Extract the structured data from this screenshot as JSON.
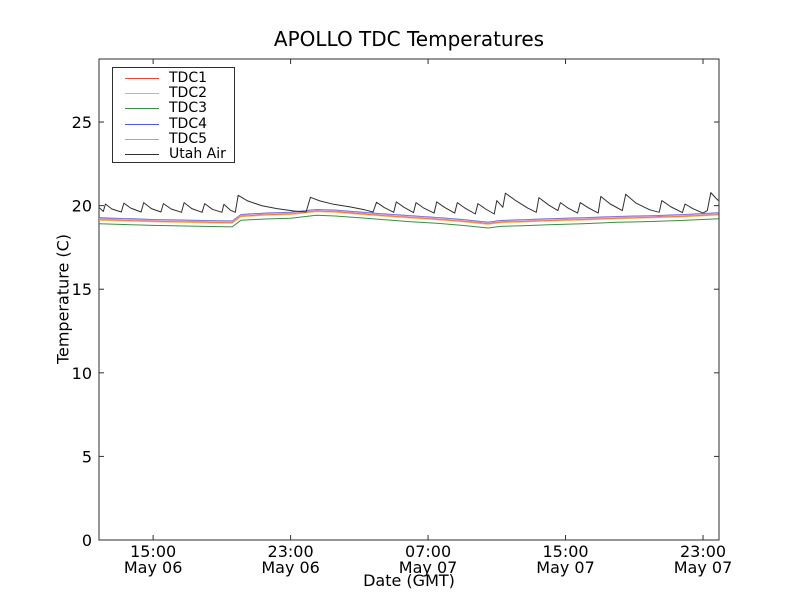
{
  "figure": {
    "background": "#ffffff",
    "frame_color": "#2e2e2e",
    "text_color": "#000000"
  },
  "chart_data": {
    "type": "line",
    "title": "APOLLO TDC Temperatures",
    "xlabel": "Date (GMT)",
    "ylabel": "Temperature (C)",
    "x_encoding": "hours after May 06 12:00 GMT",
    "xlim": [
      -0.15,
      35.93
    ],
    "ylim": [
      0,
      28.77
    ],
    "grid": false,
    "legend_position": "upper left",
    "x_ticks": [
      {
        "t": 3,
        "time": "15:00",
        "date": "May 06"
      },
      {
        "t": 11,
        "time": "23:00",
        "date": "May 06"
      },
      {
        "t": 19,
        "time": "07:00",
        "date": "May 07"
      },
      {
        "t": 27,
        "time": "15:00",
        "date": "May 07"
      },
      {
        "t": 35,
        "time": "23:00",
        "date": "May 07"
      }
    ],
    "y_ticks": [
      {
        "v": 0,
        "label": "0"
      },
      {
        "v": 5,
        "label": "5"
      },
      {
        "v": 10,
        "label": "10"
      },
      {
        "v": 15,
        "label": "15"
      },
      {
        "v": 20,
        "label": "20"
      },
      {
        "v": 25,
        "label": "25"
      }
    ],
    "series": [
      {
        "name": "TDC1",
        "color": "#e8473f",
        "points": [
          [
            -0.15,
            19.15
          ],
          [
            3,
            19.07
          ],
          [
            6,
            19.01
          ],
          [
            7.6,
            18.98
          ],
          [
            8.1,
            19.37
          ],
          [
            9.5,
            19.45
          ],
          [
            11,
            19.5
          ],
          [
            12.5,
            19.67
          ],
          [
            13.6,
            19.63
          ],
          [
            15,
            19.52
          ],
          [
            16.5,
            19.4
          ],
          [
            18,
            19.29
          ],
          [
            19.5,
            19.19
          ],
          [
            21,
            19.07
          ],
          [
            22.5,
            18.91
          ],
          [
            23.2,
            19.01
          ],
          [
            24.5,
            19.05
          ],
          [
            26,
            19.11
          ],
          [
            28,
            19.17
          ],
          [
            30,
            19.25
          ],
          [
            32,
            19.3
          ],
          [
            34,
            19.37
          ],
          [
            35.9,
            19.47
          ]
        ]
      },
      {
        "name": "TDC2",
        "color": "#f2b13d",
        "points": [
          [
            -0.15,
            19.12
          ],
          [
            3,
            19.04
          ],
          [
            6,
            18.98
          ],
          [
            7.6,
            18.95
          ],
          [
            8.1,
            19.34
          ],
          [
            9.5,
            19.42
          ],
          [
            11,
            19.47
          ],
          [
            12.5,
            19.64
          ],
          [
            13.6,
            19.6
          ],
          [
            15,
            19.49
          ],
          [
            16.5,
            19.37
          ],
          [
            18,
            19.26
          ],
          [
            19.5,
            19.16
          ],
          [
            21,
            19.04
          ],
          [
            22.5,
            18.88
          ],
          [
            23.2,
            18.98
          ],
          [
            24.5,
            19.02
          ],
          [
            26,
            19.08
          ],
          [
            28,
            19.14
          ],
          [
            30,
            19.22
          ],
          [
            32,
            19.27
          ],
          [
            34,
            19.34
          ],
          [
            35.9,
            19.44
          ]
        ]
      },
      {
        "name": "TDC3",
        "color": "#3b8c47",
        "points": [
          [
            -0.15,
            18.92
          ],
          [
            3,
            18.82
          ],
          [
            6,
            18.76
          ],
          [
            7.6,
            18.73
          ],
          [
            8.1,
            19.12
          ],
          [
            9.5,
            19.2
          ],
          [
            11,
            19.25
          ],
          [
            12.5,
            19.42
          ],
          [
            13.6,
            19.38
          ],
          [
            15,
            19.27
          ],
          [
            16.5,
            19.15
          ],
          [
            18,
            19.04
          ],
          [
            19.5,
            18.94
          ],
          [
            21,
            18.82
          ],
          [
            22.5,
            18.66
          ],
          [
            23.2,
            18.76
          ],
          [
            24.5,
            18.8
          ],
          [
            26,
            18.86
          ],
          [
            28,
            18.92
          ],
          [
            30,
            19.0
          ],
          [
            32,
            19.05
          ],
          [
            34,
            19.12
          ],
          [
            35.9,
            19.22
          ]
        ]
      },
      {
        "name": "TDC4",
        "color": "#4a58e0",
        "points": [
          [
            -0.15,
            19.27
          ],
          [
            3,
            19.17
          ],
          [
            6,
            19.11
          ],
          [
            7.6,
            19.08
          ],
          [
            8.1,
            19.47
          ],
          [
            9.5,
            19.55
          ],
          [
            11,
            19.6
          ],
          [
            12.5,
            19.77
          ],
          [
            13.6,
            19.73
          ],
          [
            15,
            19.62
          ],
          [
            16.5,
            19.5
          ],
          [
            18,
            19.39
          ],
          [
            19.5,
            19.29
          ],
          [
            21,
            19.17
          ],
          [
            22.5,
            19.01
          ],
          [
            23.2,
            19.11
          ],
          [
            24.5,
            19.15
          ],
          [
            26,
            19.21
          ],
          [
            28,
            19.27
          ],
          [
            30,
            19.35
          ],
          [
            32,
            19.4
          ],
          [
            34,
            19.47
          ],
          [
            35.9,
            19.57
          ]
        ]
      },
      {
        "name": "TDC5",
        "color": "#c98fd8",
        "points": [
          [
            -0.15,
            19.23
          ],
          [
            3,
            19.14
          ],
          [
            6,
            19.08
          ],
          [
            7.6,
            19.05
          ],
          [
            8.1,
            19.44
          ],
          [
            9.5,
            19.52
          ],
          [
            11,
            19.57
          ],
          [
            12.5,
            19.74
          ],
          [
            13.6,
            19.7
          ],
          [
            15,
            19.59
          ],
          [
            16.5,
            19.47
          ],
          [
            18,
            19.36
          ],
          [
            19.5,
            19.26
          ],
          [
            21,
            19.14
          ],
          [
            22.5,
            18.98
          ],
          [
            23.2,
            19.08
          ],
          [
            24.5,
            19.12
          ],
          [
            26,
            19.18
          ],
          [
            28,
            19.24
          ],
          [
            30,
            19.32
          ],
          [
            32,
            19.37
          ],
          [
            34,
            19.44
          ],
          [
            35.9,
            19.54
          ]
        ]
      },
      {
        "name": "Utah Air",
        "color": "#2f2f2f",
        "points": [
          [
            -0.15,
            19.9
          ],
          [
            0.1,
            19.65
          ],
          [
            0.22,
            20.1
          ],
          [
            0.6,
            19.8
          ],
          [
            1.15,
            19.62
          ],
          [
            1.3,
            20.15
          ],
          [
            1.7,
            19.85
          ],
          [
            2.3,
            19.62
          ],
          [
            2.45,
            20.18
          ],
          [
            2.9,
            19.82
          ],
          [
            3.45,
            19.62
          ],
          [
            3.6,
            20.12
          ],
          [
            4.05,
            19.8
          ],
          [
            4.65,
            19.6
          ],
          [
            4.8,
            20.18
          ],
          [
            5.25,
            19.82
          ],
          [
            5.85,
            19.6
          ],
          [
            6.0,
            20.12
          ],
          [
            6.45,
            19.78
          ],
          [
            7.0,
            19.6
          ],
          [
            7.12,
            20.08
          ],
          [
            7.5,
            19.72
          ],
          [
            7.78,
            19.6
          ],
          [
            7.95,
            20.62
          ],
          [
            8.5,
            20.28
          ],
          [
            9.3,
            20.0
          ],
          [
            10.2,
            19.82
          ],
          [
            11.2,
            19.68
          ],
          [
            11.9,
            19.62
          ],
          [
            12.15,
            20.5
          ],
          [
            12.7,
            20.28
          ],
          [
            13.5,
            20.08
          ],
          [
            14.5,
            19.92
          ],
          [
            15.3,
            19.75
          ],
          [
            15.8,
            19.62
          ],
          [
            16.0,
            20.2
          ],
          [
            16.45,
            19.88
          ],
          [
            17.0,
            19.6
          ],
          [
            17.15,
            20.22
          ],
          [
            17.6,
            19.9
          ],
          [
            18.15,
            19.58
          ],
          [
            18.3,
            20.18
          ],
          [
            18.75,
            19.85
          ],
          [
            19.35,
            19.55
          ],
          [
            19.5,
            20.22
          ],
          [
            19.95,
            19.9
          ],
          [
            20.55,
            19.55
          ],
          [
            20.7,
            20.18
          ],
          [
            21.15,
            19.85
          ],
          [
            21.75,
            19.5
          ],
          [
            21.9,
            20.12
          ],
          [
            22.35,
            19.8
          ],
          [
            22.85,
            19.5
          ],
          [
            23.0,
            20.3
          ],
          [
            23.35,
            19.9
          ],
          [
            23.5,
            20.75
          ],
          [
            24.1,
            20.3
          ],
          [
            24.8,
            19.85
          ],
          [
            25.3,
            19.6
          ],
          [
            25.45,
            20.48
          ],
          [
            26.0,
            20.05
          ],
          [
            26.55,
            19.7
          ],
          [
            26.7,
            20.18
          ],
          [
            27.15,
            19.85
          ],
          [
            27.7,
            19.55
          ],
          [
            27.85,
            20.18
          ],
          [
            28.3,
            19.88
          ],
          [
            28.9,
            19.55
          ],
          [
            29.05,
            20.55
          ],
          [
            29.6,
            20.1
          ],
          [
            30.3,
            19.7
          ],
          [
            30.5,
            20.68
          ],
          [
            31.1,
            20.15
          ],
          [
            31.9,
            19.75
          ],
          [
            32.45,
            19.6
          ],
          [
            32.6,
            20.3
          ],
          [
            33.15,
            19.92
          ],
          [
            33.8,
            19.58
          ],
          [
            33.95,
            20.1
          ],
          [
            34.4,
            19.82
          ],
          [
            35.0,
            19.55
          ],
          [
            35.25,
            19.7
          ],
          [
            35.45,
            20.78
          ],
          [
            35.75,
            20.45
          ],
          [
            35.9,
            20.3
          ]
        ]
      }
    ]
  }
}
